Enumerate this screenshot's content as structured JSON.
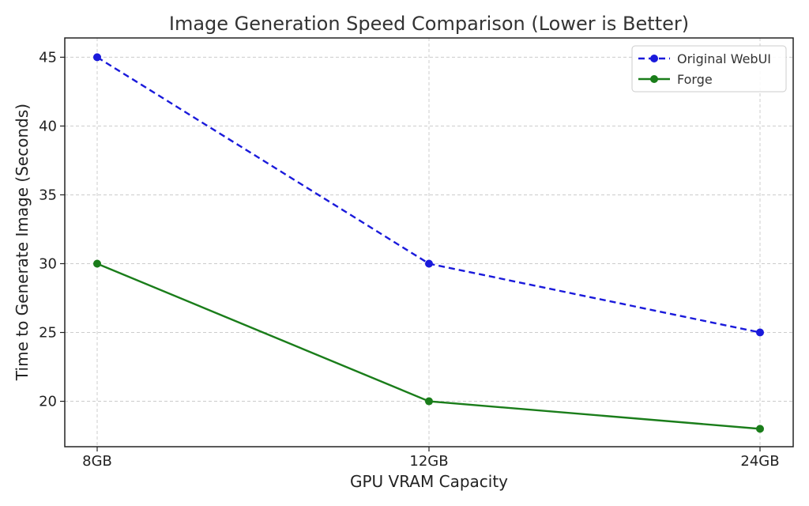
{
  "chart_data": {
    "type": "line",
    "title": "Image Generation Speed Comparison (Lower is Better)",
    "xlabel": "GPU VRAM Capacity",
    "ylabel": "Time to Generate Image (Seconds)",
    "categories": [
      "8GB",
      "12GB",
      "24GB"
    ],
    "ylim": [
      16.7,
      46.4
    ],
    "yticks": [
      20,
      25,
      30,
      35,
      40,
      45
    ],
    "grid": true,
    "legend_position": "top-right",
    "series": [
      {
        "name": "Original WebUI",
        "values": [
          45,
          30,
          25
        ],
        "color": "#1a1adb",
        "line_style": "dashed",
        "marker": "circle"
      },
      {
        "name": "Forge",
        "values": [
          30,
          20,
          18
        ],
        "color": "#1a7d1a",
        "line_style": "solid",
        "marker": "circle"
      }
    ]
  }
}
